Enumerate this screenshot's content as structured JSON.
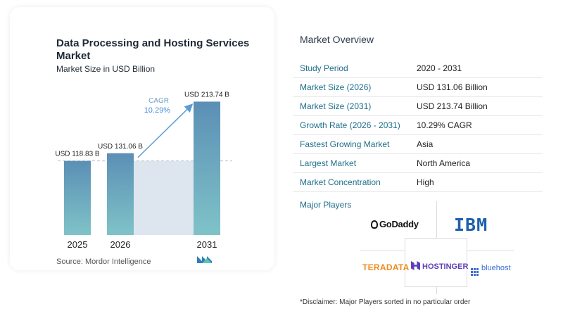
{
  "chart": {
    "title": "Data Processing and Hosting Services Market",
    "subtitle": "Market Size in USD Billion",
    "source": "Source:  Mordor Intelligence",
    "cagr_label": "CAGR",
    "cagr_value": "10.29%"
  },
  "chart_data": {
    "type": "bar",
    "title": "Data Processing and Hosting Services Market",
    "subtitle": "Market Size in USD Billion",
    "categories": [
      "2025",
      "2026",
      "2031"
    ],
    "values": [
      118.83,
      131.06,
      213.74
    ],
    "data_labels": [
      "USD 118.83 B",
      "USD 131.06 B",
      "USD 213.74 B"
    ],
    "ylim": [
      0,
      230
    ],
    "grid": false,
    "cagr": "10.29%",
    "colors": {
      "bar_top": "#5b8fb5",
      "bar_bottom": "#7fc3c8",
      "area": "#dde6ef",
      "dashed": "#b8c2cc",
      "arrow": "#5b9bd5"
    }
  },
  "overview": {
    "title": "Market Overview",
    "rows": [
      {
        "label": "Study Period",
        "value": "2020 - 2031"
      },
      {
        "label": "Market Size (2026)",
        "value": "USD 131.06 Billion"
      },
      {
        "label": "Market Size (2031)",
        "value": "USD 213.74 Billion"
      },
      {
        "label": "Growth Rate (2026 - 2031)",
        "value": "10.29% CAGR"
      },
      {
        "label": "Fastest Growing Market",
        "value": "Asia"
      },
      {
        "label": "Largest Market",
        "value": "North America"
      },
      {
        "label": "Market Concentration",
        "value": "High"
      }
    ]
  },
  "players": {
    "title": "Major Players",
    "logos": {
      "godaddy": "GoDaddy",
      "ibm": "IBM",
      "teradata": "TERADATA",
      "hostinger": "HOSTINGER",
      "bluehost": "bluehost"
    }
  },
  "disclaimer": "*Disclaimer: Major Players sorted in no particular order"
}
